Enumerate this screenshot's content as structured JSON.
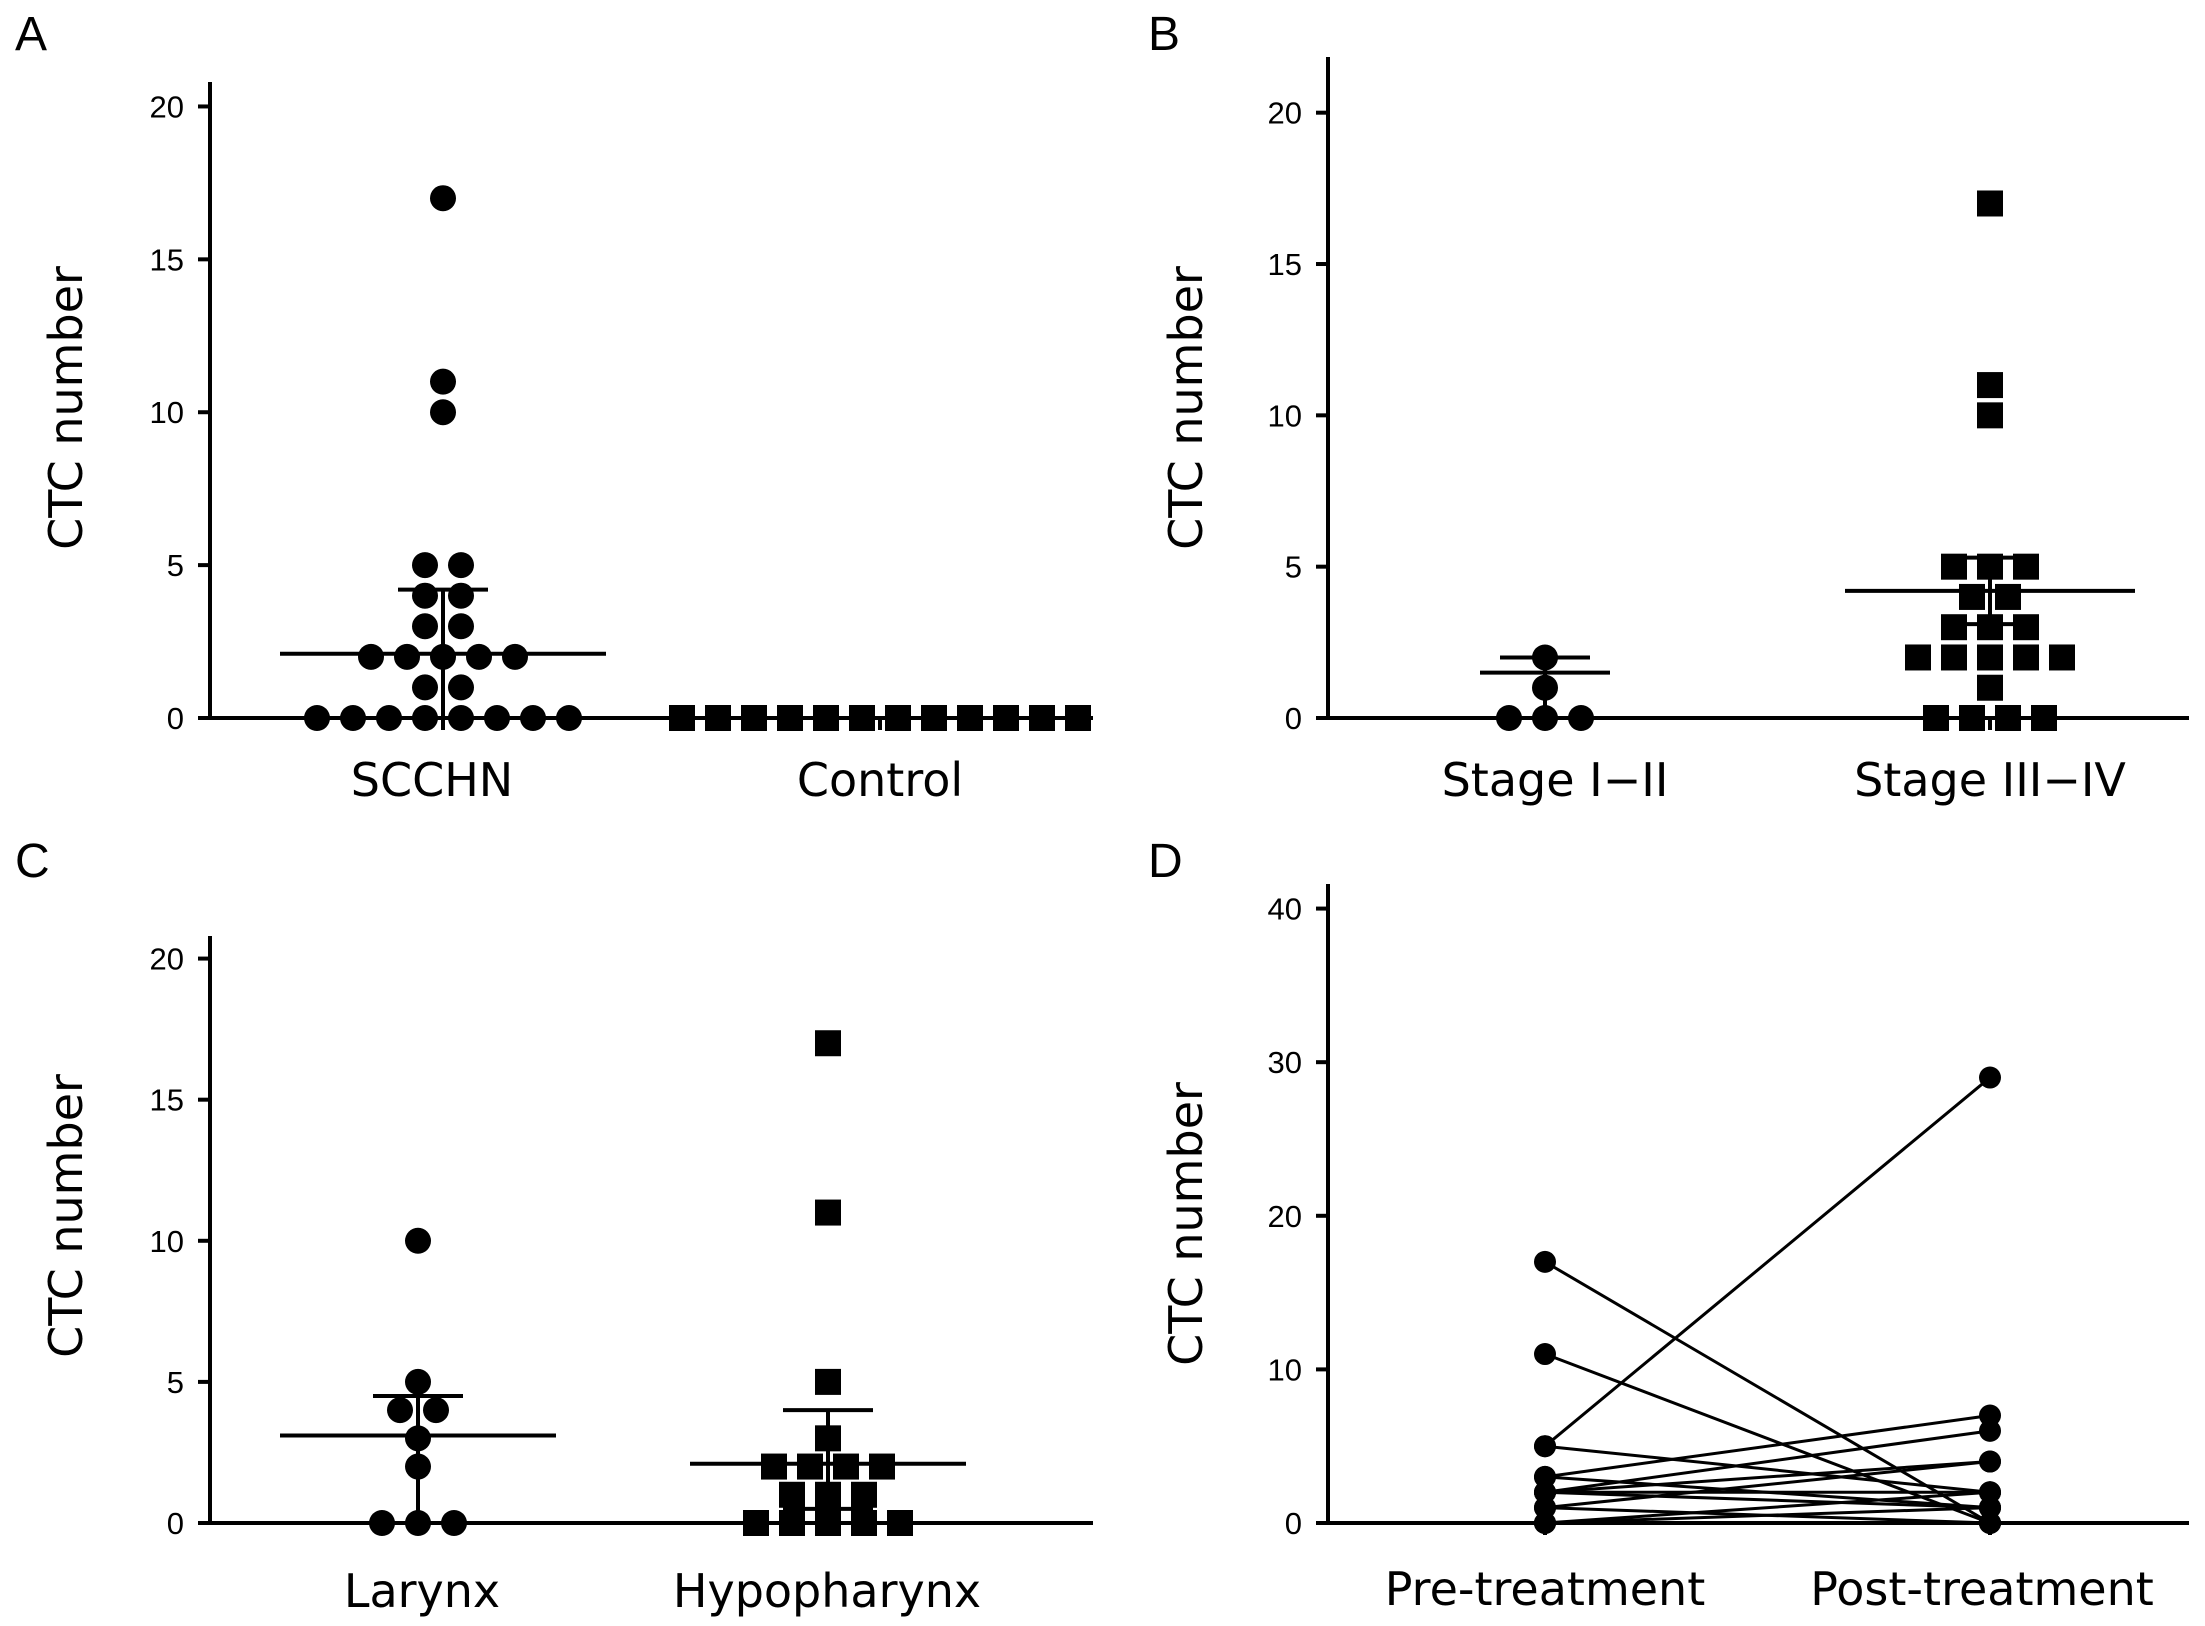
{
  "chart_data": [
    {
      "panel": "A",
      "type": "scatter",
      "ylabel": "CTC number",
      "ylim": [
        0,
        20
      ],
      "yticks": [
        0,
        5,
        10,
        15,
        20
      ],
      "categories": [
        "SCCHN",
        "Control"
      ],
      "series": [
        {
          "marker": "circle",
          "category": "SCCHN",
          "values": [
            17,
            11,
            10,
            5,
            5,
            4,
            4,
            3,
            3,
            2,
            2,
            2,
            2,
            2,
            1,
            1,
            0,
            0,
            0,
            0,
            0,
            0,
            0,
            0
          ],
          "median": 2.1,
          "iqr": [
            0,
            4.2
          ]
        },
        {
          "marker": "square",
          "category": "Control",
          "values": [
            0,
            0,
            0,
            0,
            0,
            0,
            0,
            0,
            0,
            0,
            0,
            0
          ]
        }
      ]
    },
    {
      "panel": "B",
      "type": "scatter",
      "ylabel": "CTC number",
      "ylim": [
        0,
        21
      ],
      "yticks": [
        0,
        5,
        10,
        15,
        20
      ],
      "categories": [
        "Stage I−II",
        "Stage III−IV"
      ],
      "series": [
        {
          "marker": "circle",
          "category": "Stage I−II",
          "values": [
            2,
            1,
            0,
            0,
            0
          ],
          "median": 1.5,
          "iqr": [
            0,
            2
          ]
        },
        {
          "marker": "square",
          "category": "Stage III−IV",
          "values": [
            17,
            11,
            10,
            5,
            5,
            5,
            4,
            4,
            3,
            3,
            3,
            2,
            2,
            2,
            2,
            2,
            1,
            0,
            0,
            0,
            0
          ],
          "median": 4.2,
          "iqr": [
            3.1,
            5.3
          ]
        }
      ]
    },
    {
      "panel": "C",
      "type": "scatter",
      "ylabel": "CTC number",
      "ylim": [
        0,
        20
      ],
      "yticks": [
        0,
        5,
        10,
        15,
        20
      ],
      "categories": [
        "Larynx",
        "Hypopharynx"
      ],
      "series": [
        {
          "marker": "circle",
          "category": "Larynx",
          "values": [
            10,
            5,
            4,
            4,
            3,
            2,
            0,
            0,
            0
          ],
          "median": 3.1,
          "iqr": [
            0,
            4.5
          ]
        },
        {
          "marker": "square",
          "category": "Hypopharynx",
          "values": [
            17,
            11,
            5,
            3,
            2,
            2,
            2,
            2,
            1,
            1,
            1,
            0,
            0,
            0,
            0,
            0
          ],
          "median": 2.1,
          "iqr": [
            0.5,
            4
          ]
        }
      ]
    },
    {
      "panel": "D",
      "type": "line",
      "ylabel": "CTC number",
      "ylim": [
        0,
        40
      ],
      "yticks": [
        0,
        10,
        20,
        30,
        40
      ],
      "categories": [
        "Pre-treatment",
        "Post-treatment"
      ],
      "pairs": [
        [
          17,
          0
        ],
        [
          11,
          0
        ],
        [
          5,
          29
        ],
        [
          5,
          2
        ],
        [
          3,
          7
        ],
        [
          3,
          1
        ],
        [
          2,
          6
        ],
        [
          2,
          4
        ],
        [
          2,
          2
        ],
        [
          2,
          1
        ],
        [
          1,
          4
        ],
        [
          1,
          0
        ],
        [
          0,
          2
        ],
        [
          0,
          0
        ],
        [
          0,
          1
        ]
      ]
    }
  ]
}
